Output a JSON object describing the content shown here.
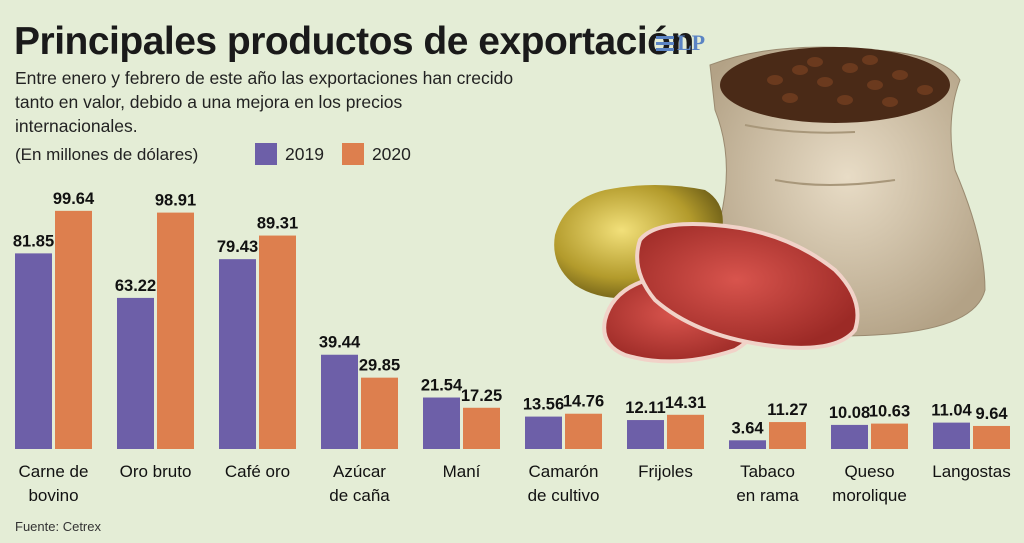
{
  "title": "Principales productos de exportación",
  "logo_text": "LP",
  "subtitle": "Entre enero y febrero de este año las exportaciones han crecido tanto en valor, debido a una mejora en los precios internacionales.",
  "unit": "(En millones de dólares)",
  "source": "Fuente: Cetrex",
  "colors": {
    "2019": "#6d5fa8",
    "2020": "#dd7f4e",
    "background": "#e4edd6"
  },
  "chart_data": {
    "type": "bar",
    "categories": [
      [
        "Carne de",
        "bovino"
      ],
      [
        "Oro bruto"
      ],
      [
        "Café oro"
      ],
      [
        "Azúcar",
        "de caña"
      ],
      [
        "Maní"
      ],
      [
        "Camarón",
        "de cultivo"
      ],
      [
        "Frijoles"
      ],
      [
        "Tabaco",
        "en rama"
      ],
      [
        "Queso",
        "morolique"
      ],
      [
        "Langostas"
      ]
    ],
    "series": [
      {
        "name": "2019",
        "values": [
          81.85,
          63.22,
          79.43,
          39.44,
          21.54,
          13.56,
          12.11,
          3.64,
          10.08,
          11.04
        ],
        "labels": [
          "81.85",
          "63.22",
          "79.43",
          "39.44",
          "21.54",
          "13.56",
          "12.11",
          "3.64",
          "10.08",
          "11.04"
        ]
      },
      {
        "name": "2020",
        "values": [
          99.64,
          98.91,
          89.31,
          29.85,
          17.25,
          14.76,
          14.31,
          11.27,
          10.63,
          9.64
        ],
        "labels": [
          "99.64",
          "98.91",
          "89.31",
          "29.85",
          "17.25",
          "14.76",
          "14.31",
          "11.27",
          "10.63",
          "9.64"
        ]
      }
    ],
    "ylim": [
      0,
      100
    ],
    "grid": false,
    "legend": "top-left"
  }
}
